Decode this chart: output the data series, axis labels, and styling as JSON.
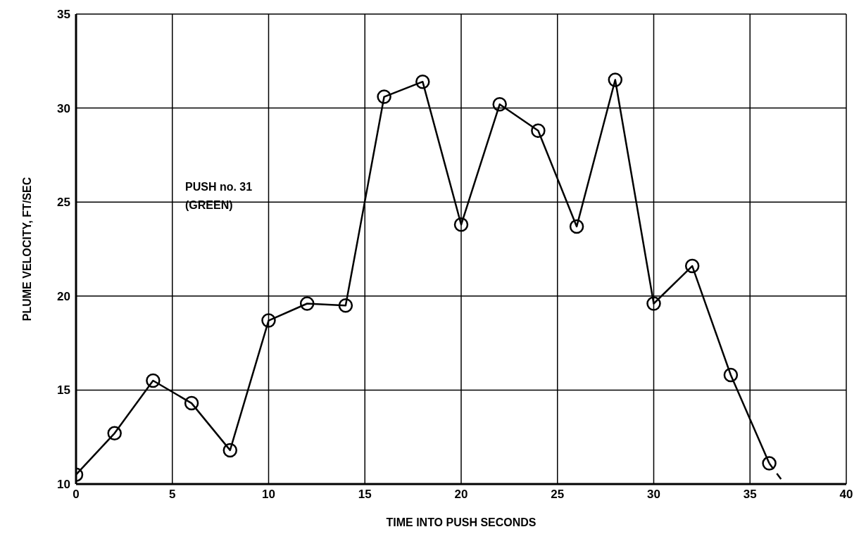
{
  "chart_data": {
    "type": "line",
    "xlabel": "TIME INTO PUSH SECONDS",
    "ylabel": "PLUME VELOCITY, FT/SEC",
    "annotations": [
      "PUSH no. 31 (GREEN)"
    ],
    "xlim": [
      0,
      40
    ],
    "xticks": [
      0,
      5,
      10,
      15,
      20,
      25,
      30,
      35,
      40
    ],
    "ylim": [
      10,
      35
    ],
    "yticks": [
      10,
      15,
      20,
      25,
      30,
      35
    ],
    "grid": true,
    "marker": "circle",
    "series": [
      {
        "color": "#000000",
        "x": [
          0,
          2,
          4,
          6,
          8,
          10,
          12,
          14,
          16,
          18,
          20,
          22,
          24,
          26,
          28,
          30,
          32,
          34,
          36
        ],
        "values": [
          10.5,
          12.7,
          15.5,
          14.3,
          11.8,
          18.7,
          19.6,
          19.5,
          30.6,
          31.4,
          23.8,
          30.2,
          28.8,
          23.7,
          31.5,
          19.6,
          21.6,
          15.8,
          11.1
        ]
      },
      {
        "color": "#000000",
        "type": "line",
        "marker": "none",
        "line_style": "dashed",
        "x": [
          36,
          36.8
        ],
        "values": [
          11.1,
          10
        ]
      }
    ]
  }
}
